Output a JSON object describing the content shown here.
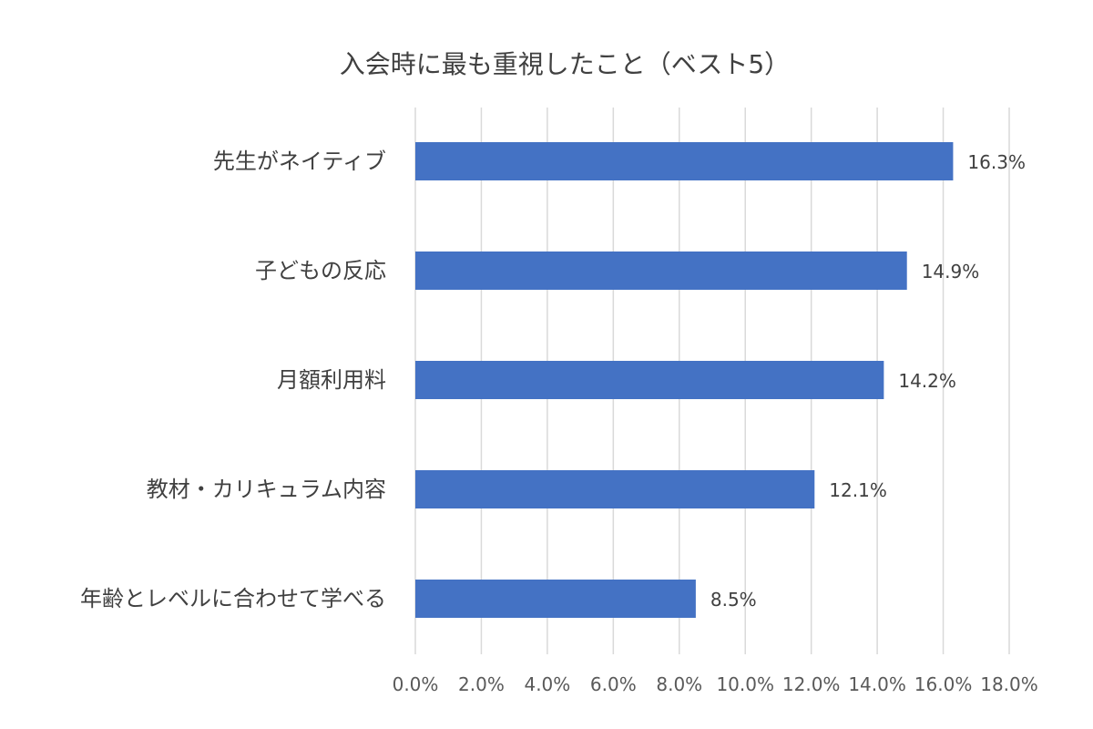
{
  "chart_data": {
    "type": "bar",
    "orientation": "horizontal",
    "title": "入会時に最も重視したこと（ベスト5）",
    "categories": [
      "先生がネイティブ",
      "子どもの反応",
      "月額利用料",
      "教材・カリキュラム内容",
      "年齢とレベルに合わせて学べる"
    ],
    "values": [
      16.3,
      14.9,
      14.2,
      12.1,
      8.5
    ],
    "value_labels": [
      "16.3%",
      "14.9%",
      "14.2%",
      "12.1%",
      "8.5%"
    ],
    "xlim": [
      0,
      18
    ],
    "x_ticks": [
      0,
      2,
      4,
      6,
      8,
      10,
      12,
      14,
      16,
      18
    ],
    "x_tick_labels": [
      "0.0%",
      "2.0%",
      "4.0%",
      "6.0%",
      "8.0%",
      "10.0%",
      "12.0%",
      "14.0%",
      "16.0%",
      "18.0%"
    ],
    "xlabel": "",
    "ylabel": "",
    "grid": "vertical",
    "legend": "none",
    "bar_color": "#4472C4"
  }
}
